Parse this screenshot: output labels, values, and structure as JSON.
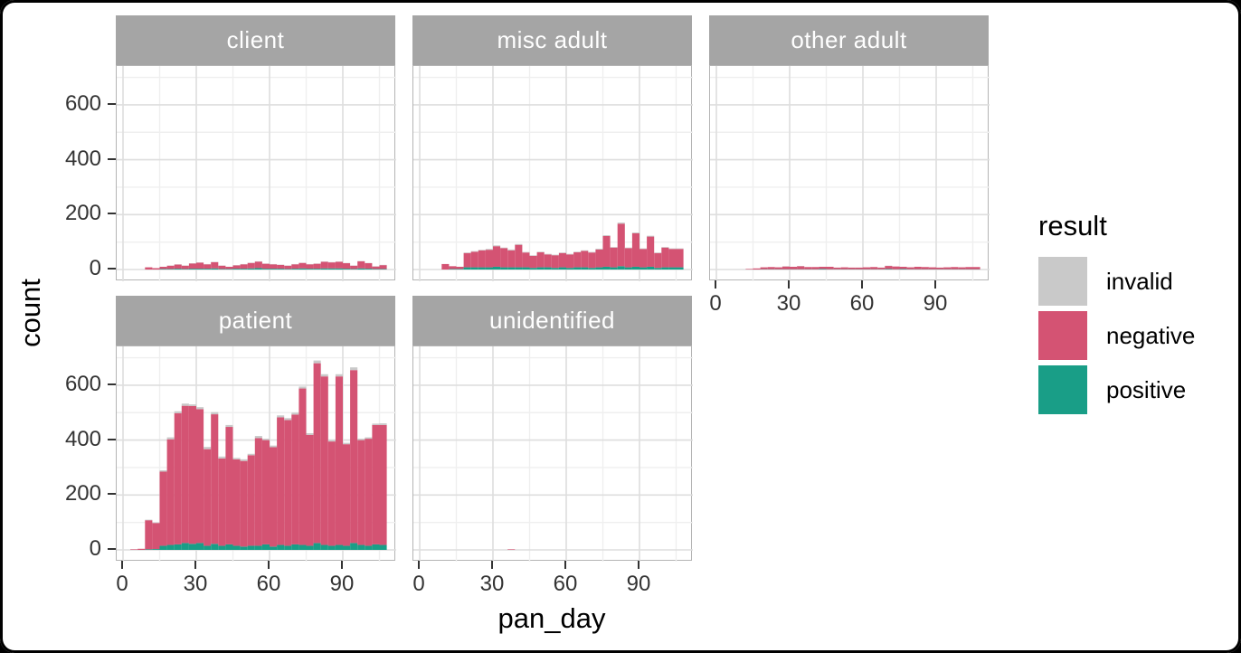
{
  "chart_data": {
    "type": "bar",
    "stacked": true,
    "xlabel": "pan_day",
    "ylabel": "count",
    "x_ticks": [
      0,
      30,
      60,
      90
    ],
    "x_minor": [
      15,
      45,
      75,
      105
    ],
    "y_ticks": [
      0,
      200,
      400,
      600
    ],
    "y_minor": [
      100,
      300,
      500,
      700
    ],
    "xlim": [
      -6,
      116
    ],
    "ylim": [
      -43,
      750
    ],
    "bin_width": 3,
    "grid": true,
    "legend_position": "right",
    "legend": {
      "title": "result",
      "entries": [
        {
          "label": "invalid",
          "color": "#c9c9c9"
        },
        {
          "label": "negative",
          "color": "#d45373"
        },
        {
          "label": "positive",
          "color": "#199e87"
        }
      ]
    },
    "series_stack_order": [
      "positive",
      "negative",
      "invalid"
    ],
    "colors": {
      "positive": "#199e87",
      "negative": "#d45373",
      "invalid": "#c9c9c9"
    },
    "facets": [
      {
        "label": "client",
        "row": 0,
        "col": 0,
        "show_x_labels": false,
        "show_y_labels": true,
        "bars": [
          [
            9,
            0,
            8,
            0
          ],
          [
            12,
            0,
            5,
            0
          ],
          [
            15,
            2,
            8,
            0
          ],
          [
            18,
            2,
            12,
            1
          ],
          [
            21,
            3,
            15,
            1
          ],
          [
            24,
            2,
            12,
            1
          ],
          [
            27,
            3,
            19,
            1
          ],
          [
            30,
            3,
            22,
            1
          ],
          [
            33,
            3,
            16,
            1
          ],
          [
            36,
            4,
            23,
            1
          ],
          [
            39,
            2,
            12,
            1
          ],
          [
            42,
            2,
            8,
            0
          ],
          [
            45,
            3,
            12,
            1
          ],
          [
            48,
            3,
            16,
            1
          ],
          [
            51,
            4,
            20,
            1
          ],
          [
            54,
            5,
            24,
            1
          ],
          [
            57,
            3,
            18,
            1
          ],
          [
            60,
            3,
            16,
            1
          ],
          [
            63,
            3,
            14,
            1
          ],
          [
            66,
            2,
            12,
            1
          ],
          [
            69,
            3,
            16,
            1
          ],
          [
            72,
            4,
            20,
            1
          ],
          [
            75,
            3,
            16,
            1
          ],
          [
            78,
            3,
            18,
            1
          ],
          [
            81,
            4,
            24,
            1
          ],
          [
            84,
            4,
            22,
            1
          ],
          [
            87,
            4,
            24,
            1
          ],
          [
            90,
            3,
            20,
            1
          ],
          [
            93,
            2,
            12,
            1
          ],
          [
            96,
            4,
            26,
            1
          ],
          [
            99,
            3,
            20,
            1
          ],
          [
            102,
            2,
            9,
            1
          ],
          [
            105,
            2,
            14,
            1
          ]
        ]
      },
      {
        "label": "misc adult",
        "row": 0,
        "col": 1,
        "show_x_labels": false,
        "show_y_labels": false,
        "bars": [
          [
            9,
            0,
            20,
            0
          ],
          [
            12,
            2,
            10,
            0
          ],
          [
            15,
            2,
            8,
            0
          ],
          [
            18,
            8,
            52,
            2
          ],
          [
            21,
            8,
            57,
            2
          ],
          [
            24,
            8,
            62,
            2
          ],
          [
            27,
            8,
            64,
            3
          ],
          [
            30,
            10,
            75,
            3
          ],
          [
            33,
            8,
            70,
            2
          ],
          [
            36,
            8,
            62,
            3
          ],
          [
            39,
            8,
            82,
            3
          ],
          [
            42,
            8,
            54,
            2
          ],
          [
            45,
            6,
            44,
            2
          ],
          [
            48,
            8,
            55,
            2
          ],
          [
            51,
            8,
            47,
            2
          ],
          [
            54,
            6,
            46,
            2
          ],
          [
            57,
            8,
            52,
            2
          ],
          [
            60,
            6,
            49,
            2
          ],
          [
            63,
            8,
            55,
            2
          ],
          [
            66,
            8,
            60,
            2
          ],
          [
            69,
            6,
            56,
            2
          ],
          [
            72,
            8,
            65,
            3
          ],
          [
            75,
            10,
            112,
            3
          ],
          [
            78,
            8,
            72,
            2
          ],
          [
            81,
            12,
            155,
            4
          ],
          [
            84,
            8,
            70,
            2
          ],
          [
            87,
            10,
            122,
            3
          ],
          [
            90,
            8,
            67,
            2
          ],
          [
            93,
            10,
            110,
            3
          ],
          [
            96,
            6,
            54,
            2
          ],
          [
            99,
            8,
            72,
            2
          ],
          [
            102,
            8,
            67,
            2
          ],
          [
            105,
            8,
            67,
            2
          ]
        ]
      },
      {
        "label": "other adult",
        "row": 0,
        "col": 2,
        "show_x_labels": true,
        "show_y_labels": false,
        "bars": [
          [
            12,
            0,
            2,
            0
          ],
          [
            15,
            0,
            4,
            0
          ],
          [
            18,
            1,
            7,
            0
          ],
          [
            21,
            1,
            8,
            0
          ],
          [
            24,
            1,
            7,
            0
          ],
          [
            27,
            1,
            10,
            1
          ],
          [
            30,
            1,
            9,
            0
          ],
          [
            33,
            1,
            11,
            1
          ],
          [
            36,
            1,
            8,
            0
          ],
          [
            39,
            1,
            8,
            0
          ],
          [
            42,
            2,
            8,
            0
          ],
          [
            45,
            1,
            9,
            0
          ],
          [
            48,
            1,
            6,
            0
          ],
          [
            51,
            1,
            7,
            0
          ],
          [
            54,
            1,
            6,
            0
          ],
          [
            57,
            1,
            6,
            0
          ],
          [
            60,
            1,
            7,
            0
          ],
          [
            63,
            1,
            8,
            0
          ],
          [
            66,
            1,
            6,
            0
          ],
          [
            69,
            2,
            11,
            1
          ],
          [
            72,
            1,
            10,
            0
          ],
          [
            75,
            2,
            8,
            0
          ],
          [
            78,
            1,
            7,
            0
          ],
          [
            81,
            1,
            9,
            0
          ],
          [
            84,
            1,
            8,
            0
          ],
          [
            87,
            1,
            7,
            0
          ],
          [
            90,
            1,
            6,
            0
          ],
          [
            93,
            1,
            7,
            0
          ],
          [
            96,
            1,
            8,
            0
          ],
          [
            99,
            1,
            7,
            0
          ],
          [
            102,
            1,
            8,
            0
          ],
          [
            105,
            1,
            8,
            0
          ]
        ]
      },
      {
        "label": "patient",
        "row": 1,
        "col": 0,
        "show_x_labels": true,
        "show_y_labels": true,
        "bars": [
          [
            3,
            0,
            2,
            0
          ],
          [
            6,
            0,
            4,
            0
          ],
          [
            9,
            2,
            106,
            2
          ],
          [
            12,
            3,
            95,
            2
          ],
          [
            15,
            15,
            270,
            5
          ],
          [
            18,
            18,
            385,
            7
          ],
          [
            21,
            20,
            478,
            7
          ],
          [
            24,
            25,
            500,
            8
          ],
          [
            27,
            22,
            502,
            6
          ],
          [
            30,
            25,
            488,
            7
          ],
          [
            33,
            15,
            352,
            8
          ],
          [
            36,
            22,
            472,
            8
          ],
          [
            39,
            15,
            318,
            7
          ],
          [
            42,
            20,
            428,
            7
          ],
          [
            45,
            15,
            315,
            5
          ],
          [
            48,
            12,
            312,
            6
          ],
          [
            51,
            15,
            330,
            5
          ],
          [
            54,
            15,
            392,
            8
          ],
          [
            57,
            20,
            380,
            5
          ],
          [
            60,
            12,
            362,
            6
          ],
          [
            63,
            18,
            465,
            7
          ],
          [
            66,
            15,
            458,
            7
          ],
          [
            69,
            20,
            473,
            7
          ],
          [
            72,
            18,
            570,
            7
          ],
          [
            75,
            15,
            404,
            6
          ],
          [
            78,
            25,
            655,
            10
          ],
          [
            81,
            18,
            614,
            8
          ],
          [
            84,
            15,
            380,
            5
          ],
          [
            87,
            18,
            614,
            8
          ],
          [
            90,
            15,
            370,
            5
          ],
          [
            93,
            25,
            630,
            10
          ],
          [
            96,
            18,
            382,
            5
          ],
          [
            99,
            15,
            390,
            5
          ],
          [
            102,
            20,
            435,
            5
          ],
          [
            105,
            18,
            437,
            6
          ]
        ]
      },
      {
        "label": "unidentified",
        "row": 1,
        "col": 1,
        "show_x_labels": true,
        "show_y_labels": false,
        "bars": [
          [
            36,
            0,
            2,
            0
          ]
        ]
      }
    ]
  }
}
